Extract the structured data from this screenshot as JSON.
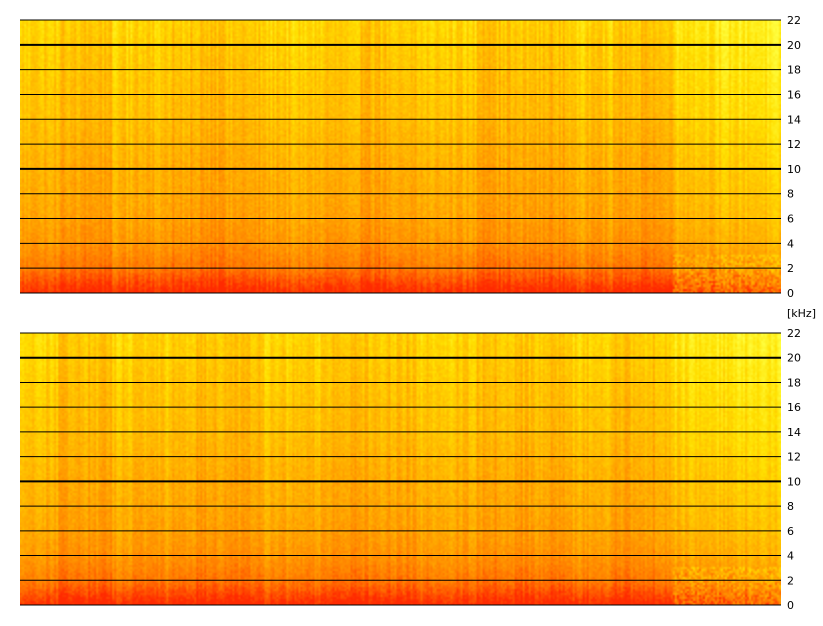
{
  "chart_data": [
    {
      "type": "heatmap",
      "title": "",
      "xlabel": "",
      "ylabel": "[kHz]",
      "ylim": [
        0,
        22
      ],
      "y_ticks": [
        "0",
        "2",
        "4",
        "6",
        "8",
        "10",
        "12",
        "14",
        "16",
        "18",
        "20",
        "22"
      ],
      "bold_gridlines_at": [
        10,
        20
      ],
      "grid": true,
      "colormap": [
        "#ff2a00",
        "#ff7a00",
        "#ffb000",
        "#ffe000",
        "#ffff40"
      ],
      "intensity_by_frequency": [
        {
          "khz": 0,
          "level": 0.02
        },
        {
          "khz": 1,
          "level": 0.15
        },
        {
          "khz": 2,
          "level": 0.28
        },
        {
          "khz": 4,
          "level": 0.4
        },
        {
          "khz": 6,
          "level": 0.46
        },
        {
          "khz": 8,
          "level": 0.5
        },
        {
          "khz": 10,
          "level": 0.52
        },
        {
          "khz": 12,
          "level": 0.56
        },
        {
          "khz": 14,
          "level": 0.6
        },
        {
          "khz": 16,
          "level": 0.62
        },
        {
          "khz": 18,
          "level": 0.65
        },
        {
          "khz": 20,
          "level": 0.68
        },
        {
          "khz": 22,
          "level": 0.72
        }
      ],
      "louder_time_regions": [
        [
          0.05,
          0.12
        ],
        [
          0.2,
          0.32
        ],
        [
          0.4,
          0.52
        ],
        [
          0.6,
          0.72
        ],
        [
          0.78,
          0.85
        ]
      ],
      "quiet_tail_from": 0.86
    },
    {
      "type": "heatmap",
      "title": "",
      "xlabel": "",
      "ylabel": "",
      "ylim": [
        0,
        22
      ],
      "y_ticks": [
        "0",
        "2",
        "4",
        "6",
        "8",
        "10",
        "12",
        "14",
        "16",
        "18",
        "20",
        "22"
      ],
      "bold_gridlines_at": [
        10,
        20
      ],
      "grid": true,
      "colormap": [
        "#ff2a00",
        "#ff7a00",
        "#ffb000",
        "#ffe000",
        "#ffff40"
      ],
      "intensity_by_frequency": [
        {
          "khz": 0,
          "level": 0.02
        },
        {
          "khz": 1,
          "level": 0.15
        },
        {
          "khz": 2,
          "level": 0.28
        },
        {
          "khz": 4,
          "level": 0.4
        },
        {
          "khz": 6,
          "level": 0.46
        },
        {
          "khz": 8,
          "level": 0.5
        },
        {
          "khz": 10,
          "level": 0.52
        },
        {
          "khz": 12,
          "level": 0.56
        },
        {
          "khz": 14,
          "level": 0.6
        },
        {
          "khz": 16,
          "level": 0.62
        },
        {
          "khz": 18,
          "level": 0.65
        },
        {
          "khz": 20,
          "level": 0.68
        },
        {
          "khz": 22,
          "level": 0.72
        }
      ],
      "louder_time_regions": [
        [
          0.05,
          0.12
        ],
        [
          0.2,
          0.32
        ],
        [
          0.4,
          0.52
        ],
        [
          0.6,
          0.72
        ],
        [
          0.78,
          0.85
        ]
      ],
      "quiet_tail_from": 0.86
    }
  ]
}
